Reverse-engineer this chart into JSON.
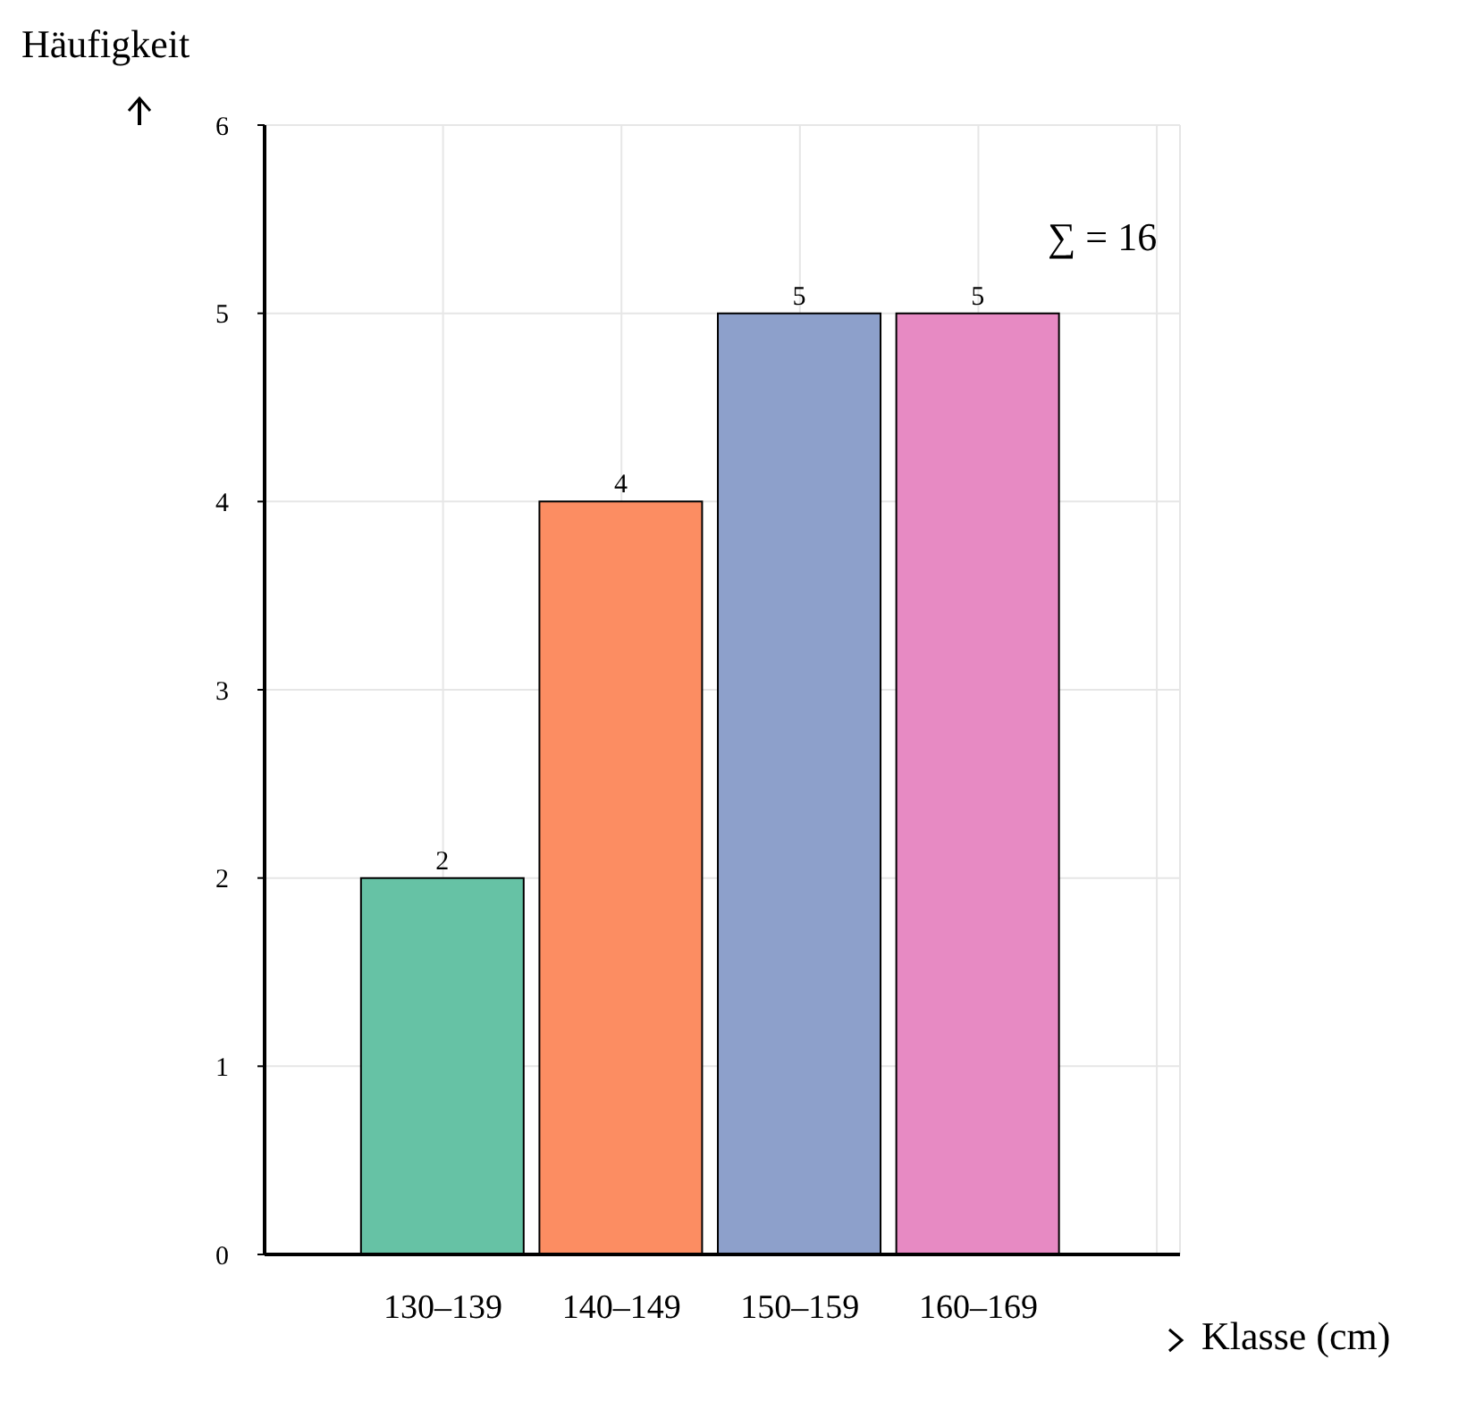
{
  "chart_data": {
    "type": "bar",
    "ylabel": "Häufigkeit",
    "xlabel": "Klasse (cm)",
    "categories": [
      "130–139",
      "140–149",
      "150–159",
      "160–169"
    ],
    "values": [
      2,
      4,
      5,
      5
    ],
    "colors": [
      "#66c2a5",
      "#fc8d62",
      "#8da0cb",
      "#e78ac3"
    ],
    "ylim": [
      0,
      6
    ],
    "yticks": [
      0,
      1,
      2,
      3,
      4,
      5,
      6
    ],
    "grid": true,
    "data_labels": true,
    "annotations": [
      "∑ = 16"
    ]
  }
}
